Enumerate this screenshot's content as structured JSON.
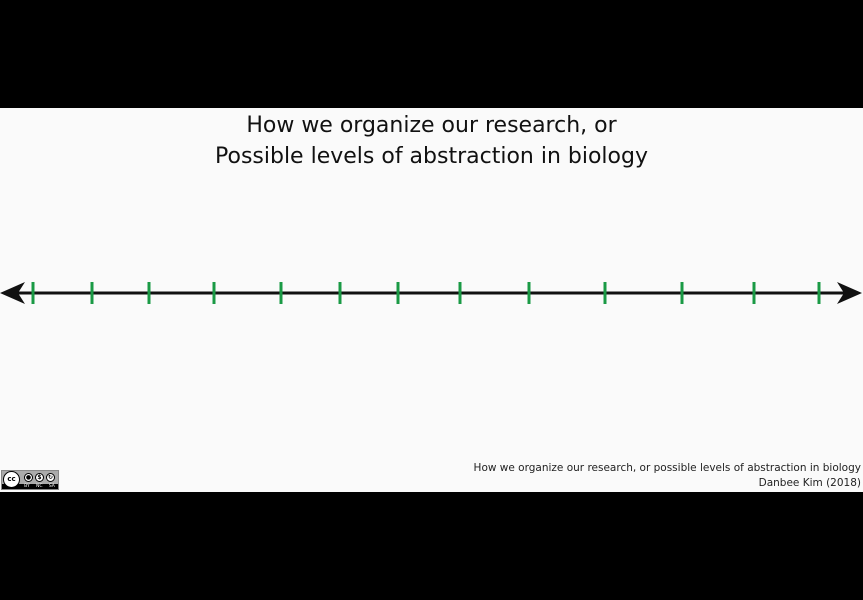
{
  "title": {
    "line1": "How we organize our research, or",
    "line2": "Possible levels of abstraction in biology"
  },
  "axis": {
    "arrowheads": "both-ends",
    "line_color": "#111111",
    "tick_color": "#1a9a45",
    "tick_count": 13
  },
  "caption": {
    "line1": "How we organize our research, or possible levels of abstraction in biology",
    "line2": "Danbee Kim (2018)"
  },
  "license": {
    "icon": "creative-commons-by-nc-sa-icon",
    "cc": "cc",
    "by": "BY",
    "nc": "NC",
    "sa": "SA"
  },
  "colors": {
    "frame": "#000000",
    "canvas": "#fafafa"
  }
}
